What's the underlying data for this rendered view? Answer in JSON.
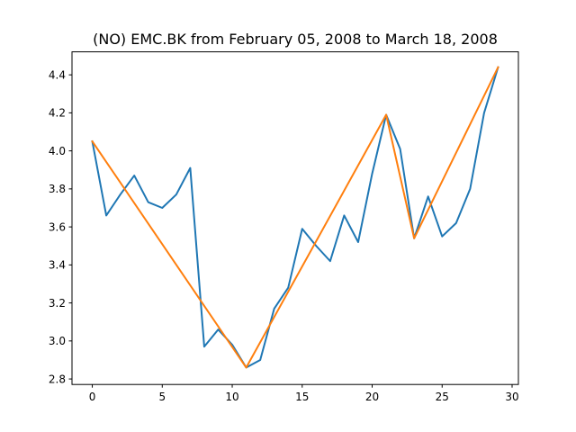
{
  "chart_data": {
    "type": "line",
    "title": "(NO) EMC.BK from February 05, 2008 to March 18, 2008",
    "xlabel": "",
    "ylabel": "",
    "xlim": [
      -1.45,
      30.45
    ],
    "ylim": [
      2.771,
      4.521
    ],
    "x_ticks": [
      0,
      5,
      10,
      15,
      20,
      25,
      30
    ],
    "y_ticks": [
      2.8,
      3.0,
      3.2,
      3.4,
      3.6,
      3.8,
      4.0,
      4.2,
      4.4
    ],
    "x_tick_labels": [
      "0",
      "5",
      "10",
      "15",
      "20",
      "25",
      "30"
    ],
    "y_tick_labels": [
      "2.8",
      "3.0",
      "3.2",
      "3.4",
      "3.6",
      "3.8",
      "4.0",
      "4.2",
      "4.4"
    ],
    "grid": false,
    "series": [
      {
        "color": "#1f77b4",
        "x": [
          0,
          1,
          2,
          3,
          4,
          5,
          6,
          7,
          8,
          9,
          10,
          11,
          12,
          13,
          14,
          15,
          16,
          17,
          18,
          19,
          20,
          21,
          22,
          23,
          24,
          25,
          26,
          27,
          28,
          29
        ],
        "values": [
          4.05,
          3.66,
          3.77,
          3.87,
          3.73,
          3.7,
          3.77,
          3.91,
          2.97,
          3.06,
          2.98,
          2.86,
          2.9,
          3.17,
          3.28,
          3.59,
          3.5,
          3.42,
          3.66,
          3.52,
          3.88,
          4.19,
          4.01,
          3.54,
          3.76,
          3.55,
          3.62,
          3.8,
          4.2,
          4.44
        ]
      },
      {
        "color": "#ff7f0e",
        "x": [
          0,
          11,
          21,
          23,
          29
        ],
        "values": [
          4.05,
          2.86,
          4.19,
          3.54,
          4.44
        ]
      }
    ]
  }
}
